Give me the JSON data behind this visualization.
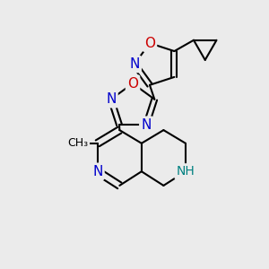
{
  "background_color": "#ebebeb",
  "bond_color": "#000000",
  "bond_width": 1.5,
  "atom_colors": {
    "N": "#0000cc",
    "O": "#cc0000",
    "NH": "#008080",
    "C": "#000000"
  },
  "font_size": 11
}
